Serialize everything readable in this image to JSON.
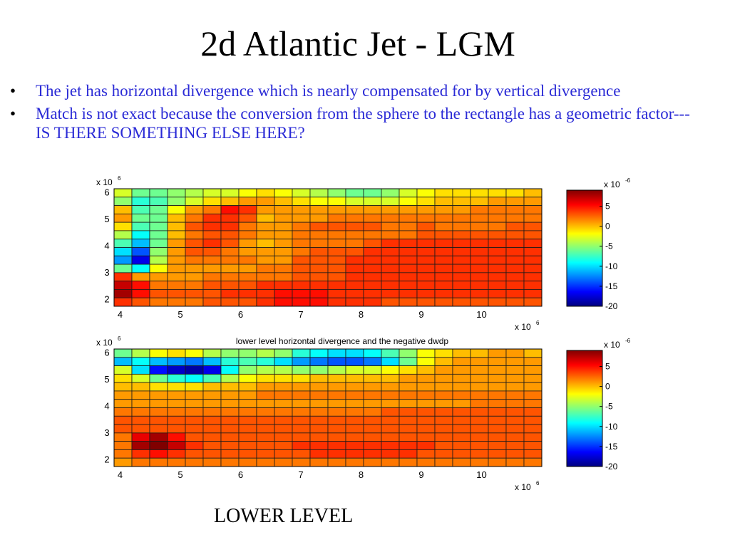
{
  "slide": {
    "title": "2d Atlantic Jet - LGM",
    "bullets": [
      "The jet has horizontal divergence which is nearly compensated for by vertical divergence",
      "Match is not exact because the conversion from the sphere to the rectangle has a geometric factor--- IS THERE SOMETHING ELSE HERE?"
    ],
    "bullet_marker": "•",
    "footer": "LOWER LEVEL"
  },
  "colors": {
    "bullet_text": "#2b2bd6",
    "grid_line": "#1a1a1a"
  },
  "chart_data": [
    {
      "type": "heatmap",
      "title": "",
      "x_ticks": [
        4,
        5,
        6,
        7,
        8,
        9,
        10
      ],
      "y_ticks": [
        2,
        3,
        4,
        5,
        6
      ],
      "x_multiplier": "x 10",
      "x_multiplier_exp": "6",
      "y_multiplier": "x 10",
      "y_multiplier_exp": "6",
      "xlim": [
        3.9,
        11.0
      ],
      "ylim": [
        1.75,
        6.15
      ],
      "rows": 14,
      "cols": 24,
      "colorbar": {
        "multiplier": "x 10",
        "multiplier_exp": "-6",
        "ticks": [
          5,
          0,
          -5,
          -10,
          -15,
          -20
        ],
        "range": [
          -20,
          9
        ]
      },
      "values": [
        [
          -3,
          -6,
          -6,
          -5,
          -4,
          -3,
          -3,
          -2,
          -1,
          -2,
          -3,
          -4,
          -5,
          -6,
          -6,
          -5,
          -3,
          -2,
          -1,
          -1,
          -1,
          -1,
          -1,
          0
        ],
        [
          -5,
          -8,
          -7,
          -5,
          -3,
          -1,
          0,
          1,
          1,
          0,
          -1,
          -2,
          -2,
          -3,
          -3,
          -3,
          -2,
          -1,
          0,
          0,
          0,
          1,
          1,
          1
        ],
        [
          0,
          -7,
          -6,
          -2,
          1,
          2,
          5,
          4,
          1,
          1,
          1,
          1,
          1,
          1,
          1,
          1,
          1,
          1,
          1,
          1,
          2,
          2,
          2,
          2
        ],
        [
          1,
          -6,
          -6,
          0,
          2,
          4,
          4,
          3,
          0,
          1,
          1,
          1,
          2,
          2,
          2,
          2,
          2,
          2,
          2,
          2,
          2,
          2,
          2,
          2
        ],
        [
          -1,
          -7,
          -6,
          0,
          3,
          4,
          4,
          2,
          1,
          1,
          2,
          3,
          3,
          3,
          3,
          2,
          2,
          3,
          2,
          2,
          2,
          2,
          3,
          3
        ],
        [
          -4,
          -9,
          -6,
          0,
          2,
          3,
          3,
          2,
          1,
          1,
          2,
          2,
          2,
          2,
          2,
          2,
          2,
          3,
          3,
          3,
          3,
          3,
          3,
          3
        ],
        [
          -7,
          -11,
          -6,
          1,
          3,
          4,
          3,
          1,
          0,
          1,
          2,
          2,
          2,
          2,
          3,
          4,
          4,
          4,
          4,
          4,
          4,
          4,
          4,
          4
        ],
        [
          -10,
          -14,
          -5,
          1,
          3,
          3,
          2,
          1,
          1,
          1,
          2,
          3,
          3,
          3,
          4,
          4,
          4,
          4,
          4,
          4,
          4,
          4,
          4,
          4
        ],
        [
          -12,
          -17,
          -4,
          1,
          2,
          2,
          2,
          2,
          1,
          1,
          3,
          3,
          3,
          4,
          4,
          4,
          4,
          4,
          4,
          4,
          4,
          4,
          4,
          4
        ],
        [
          -6,
          -9,
          -2,
          1,
          1,
          1,
          1,
          1,
          2,
          2,
          3,
          3,
          3,
          4,
          4,
          4,
          4,
          4,
          4,
          4,
          4,
          4,
          4,
          4
        ],
        [
          4,
          1,
          1,
          1,
          1,
          2,
          2,
          2,
          2,
          2,
          3,
          3,
          3,
          4,
          4,
          4,
          4,
          4,
          4,
          4,
          4,
          4,
          4,
          4
        ],
        [
          7,
          5,
          2,
          2,
          2,
          3,
          3,
          3,
          4,
          4,
          4,
          4,
          4,
          4,
          4,
          4,
          4,
          4,
          4,
          4,
          4,
          4,
          4,
          4
        ],
        [
          8,
          5,
          3,
          3,
          3,
          3,
          4,
          4,
          4,
          5,
          5,
          5,
          4,
          4,
          4,
          4,
          4,
          4,
          4,
          4,
          4,
          4,
          4,
          4
        ],
        [
          4,
          3,
          2,
          2,
          2,
          3,
          3,
          3,
          4,
          5,
          5,
          5,
          4,
          4,
          4,
          3,
          3,
          3,
          3,
          3,
          3,
          3,
          3,
          3
        ]
      ]
    },
    {
      "type": "heatmap",
      "title": "lower level horizontal divergence and the negative dwdp",
      "x_ticks": [
        4,
        5,
        6,
        7,
        8,
        9,
        10
      ],
      "y_ticks": [
        2,
        3,
        4,
        5,
        6
      ],
      "x_multiplier": "x 10",
      "x_multiplier_exp": "6",
      "y_multiplier": "x 10",
      "y_multiplier_exp": "6",
      "xlim": [
        3.9,
        11.0
      ],
      "ylim": [
        1.75,
        6.15
      ],
      "rows": 14,
      "cols": 24,
      "colorbar": {
        "multiplier": "x 10",
        "multiplier_exp": "-6",
        "ticks": [
          5,
          0,
          -5,
          -10,
          -15,
          -20
        ],
        "range": [
          -20,
          9
        ]
      },
      "values": [
        [
          -6,
          -4,
          -2,
          -1,
          -2,
          -4,
          -5,
          -5,
          -4,
          -5,
          -8,
          -9,
          -10,
          -10,
          -9,
          -7,
          -5,
          -2,
          -1,
          0,
          0,
          1,
          1,
          0
        ],
        [
          -11,
          -9,
          -11,
          -12,
          -13,
          -11,
          -8,
          -7,
          -8,
          -10,
          -12,
          -13,
          -14,
          -14,
          -13,
          -10,
          -6,
          -2,
          0,
          1,
          1,
          1,
          1,
          1
        ],
        [
          -3,
          -10,
          -16,
          -18,
          -19,
          -17,
          -9,
          -5,
          -4,
          -4,
          -5,
          -5,
          -4,
          -3,
          -3,
          -2,
          -1,
          0,
          1,
          1,
          1,
          1,
          1,
          1
        ],
        [
          -1,
          -3,
          -6,
          -8,
          -9,
          -7,
          -4,
          -2,
          -1,
          -1,
          -1,
          0,
          0,
          0,
          0,
          0,
          1,
          1,
          1,
          1,
          1,
          1,
          1,
          1
        ],
        [
          0,
          0,
          -1,
          -1,
          -1,
          0,
          0,
          0,
          1,
          1,
          1,
          1,
          1,
          1,
          1,
          1,
          1,
          1,
          1,
          1,
          1,
          1,
          1,
          1
        ],
        [
          1,
          1,
          1,
          1,
          1,
          1,
          1,
          1,
          2,
          2,
          2,
          2,
          2,
          2,
          2,
          2,
          2,
          2,
          2,
          2,
          2,
          2,
          2,
          2
        ],
        [
          1,
          1,
          1,
          1,
          1,
          1,
          1,
          1,
          1,
          1,
          1,
          1,
          1,
          1,
          1,
          1,
          1,
          1,
          1,
          1,
          2,
          2,
          2,
          2
        ],
        [
          2,
          2,
          2,
          2,
          2,
          2,
          2,
          2,
          2,
          2,
          2,
          2,
          2,
          2,
          2,
          3,
          3,
          3,
          3,
          3,
          3,
          3,
          3,
          3
        ],
        [
          3,
          3,
          3,
          3,
          3,
          3,
          3,
          3,
          3,
          3,
          3,
          3,
          3,
          3,
          3,
          3,
          3,
          3,
          3,
          3,
          3,
          3,
          3,
          3
        ],
        [
          3,
          3,
          3,
          3,
          3,
          3,
          3,
          3,
          3,
          3,
          3,
          3,
          3,
          3,
          3,
          3,
          3,
          3,
          3,
          3,
          3,
          3,
          3,
          3
        ],
        [
          2,
          6,
          8,
          5,
          3,
          3,
          3,
          3,
          3,
          3,
          3,
          3,
          3,
          3,
          3,
          3,
          3,
          3,
          3,
          3,
          3,
          3,
          3,
          3
        ],
        [
          2,
          8,
          9,
          7,
          4,
          3,
          3,
          3,
          3,
          3,
          4,
          4,
          4,
          4,
          4,
          4,
          4,
          4,
          3,
          3,
          3,
          3,
          3,
          3
        ],
        [
          2,
          4,
          5,
          4,
          3,
          3,
          3,
          3,
          3,
          3,
          3,
          4,
          4,
          4,
          4,
          4,
          4,
          3,
          3,
          3,
          3,
          3,
          3,
          3
        ],
        [
          1,
          2,
          2,
          2,
          2,
          2,
          2,
          2,
          2,
          2,
          2,
          2,
          2,
          2,
          2,
          2,
          2,
          2,
          2,
          2,
          2,
          2,
          2,
          2
        ]
      ]
    }
  ]
}
